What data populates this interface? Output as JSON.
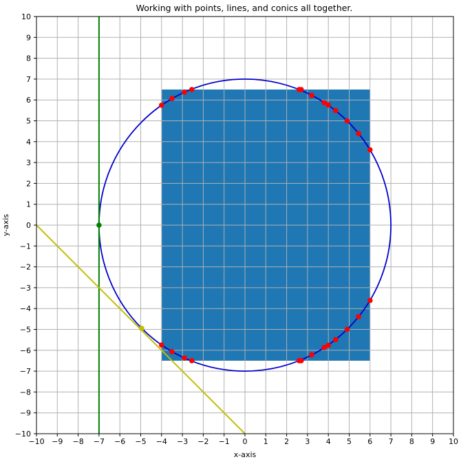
{
  "chart_data": {
    "type": "scatter",
    "title": "Working with points, lines, and conics all together.",
    "xlabel": "x-axis",
    "ylabel": "y-axis",
    "xlim": [
      -10,
      10
    ],
    "ylim": [
      -10,
      10
    ],
    "grid": true,
    "xticks": [
      -10,
      -9,
      -8,
      -7,
      -6,
      -5,
      -4,
      -3,
      -2,
      -1,
      0,
      1,
      2,
      3,
      4,
      5,
      6,
      7,
      8,
      9,
      10
    ],
    "yticks": [
      -10,
      -9,
      -8,
      -7,
      -6,
      -5,
      -4,
      -3,
      -2,
      -1,
      0,
      1,
      2,
      3,
      4,
      5,
      6,
      7,
      8,
      9,
      10
    ],
    "rectangle": {
      "x": [
        -4,
        6
      ],
      "y": [
        -6.5,
        6.5
      ],
      "color": "#1f77b4"
    },
    "ellipse": {
      "center": [
        0,
        0
      ],
      "rx": 7,
      "ry": 7,
      "color": "#0000cc"
    },
    "vertical_line": {
      "x": -7,
      "color": "#008000"
    },
    "vertical_line_point": {
      "x": -7,
      "y": 0,
      "color": "#008000"
    },
    "tangent_line": {
      "points": [
        [
          -10,
          0
        ],
        [
          0,
          -10
        ]
      ],
      "color": "#bfbf00"
    },
    "tangent_point": {
      "x": -4.95,
      "y": -4.95,
      "color": "#bfbf00"
    },
    "intersection_points": {
      "color": "#ff0000",
      "x": [
        -4,
        -4,
        -3.5,
        -3.5,
        -2.9,
        -2.9,
        -2.55,
        -2.55,
        2.6,
        2.6,
        2.7,
        2.7,
        3.2,
        3.2,
        3.8,
        3.8,
        4,
        4,
        4.35,
        4.35,
        4.9,
        4.9,
        5.45,
        5.45,
        6,
        6
      ],
      "y": [
        5.75,
        -5.75,
        6.07,
        -6.07,
        6.37,
        -6.37,
        6.5,
        -6.5,
        6.5,
        -6.5,
        6.5,
        -6.5,
        6.22,
        -6.22,
        5.87,
        -5.87,
        5.76,
        -5.76,
        5.49,
        -5.49,
        5.0,
        -5.0,
        4.39,
        -4.39,
        3.61,
        -3.61
      ]
    }
  }
}
